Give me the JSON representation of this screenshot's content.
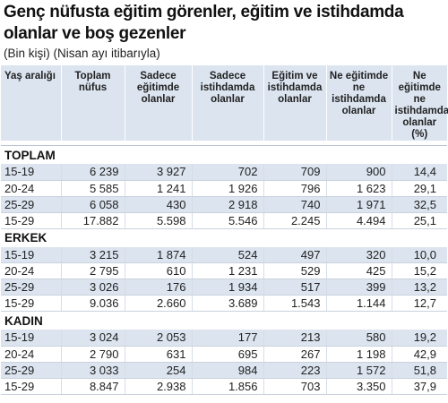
{
  "title": "Genç nüfusta eğitim görenler, eğitim ve istihdamda olanlar ve boş gezenler",
  "subtitle": "(Bin kişi) (Nisan ayı itibarıyla)",
  "columns": [
    "Yaş aralığı",
    "Toplam nüfus",
    "Sadece eğitimde olanlar",
    "Sadece istihdamda olanlar",
    "Eğitim ve istihdamda olanlar",
    "Ne eğitimde ne istihdamda olanlar",
    "Ne eğitimde ne istihdamda olanlar (%)"
  ],
  "sections": [
    {
      "label": "TOPLAM",
      "rows": [
        [
          "15-19",
          "6 239",
          "3 927",
          "702",
          "709",
          "900",
          "14,4"
        ],
        [
          "20-24",
          "5 585",
          "1 241",
          "1 926",
          "796",
          "1 623",
          "29,1"
        ],
        [
          "25-29",
          "6 058",
          "430",
          "2 918",
          "740",
          "1 971",
          "32,5"
        ],
        [
          "15-29",
          "17.882",
          "5.598",
          "5.546",
          "2.245",
          "4.494",
          "25,1"
        ]
      ]
    },
    {
      "label": "ERKEK",
      "rows": [
        [
          "15-19",
          "3 215",
          "1 874",
          "524",
          "497",
          "320",
          "10,0"
        ],
        [
          "20-24",
          "2 795",
          "610",
          "1 231",
          "529",
          "425",
          "15,2"
        ],
        [
          "25-29",
          "3 026",
          "176",
          "1 934",
          "517",
          "399",
          "13,2"
        ],
        [
          "15-29",
          "9.036",
          "2.660",
          "3.689",
          "1.543",
          "1.144",
          "12,7"
        ]
      ]
    },
    {
      "label": "KADIN",
      "rows": [
        [
          "15-19",
          "3 024",
          "2 053",
          "177",
          "213",
          "580",
          "19,2"
        ],
        [
          "20-24",
          "2 790",
          "631",
          "695",
          "267",
          "1 198",
          "42,9"
        ],
        [
          "25-29",
          "3 033",
          "254",
          "984",
          "223",
          "1 572",
          "51,8"
        ],
        [
          "15-29",
          "8.847",
          "2.938",
          "1.856",
          "703",
          "3.350",
          "37,9"
        ]
      ]
    }
  ],
  "colors": {
    "header_bg": "#dbe4ef",
    "stripe_bg": "#dbe4ef",
    "text": "#222222"
  }
}
